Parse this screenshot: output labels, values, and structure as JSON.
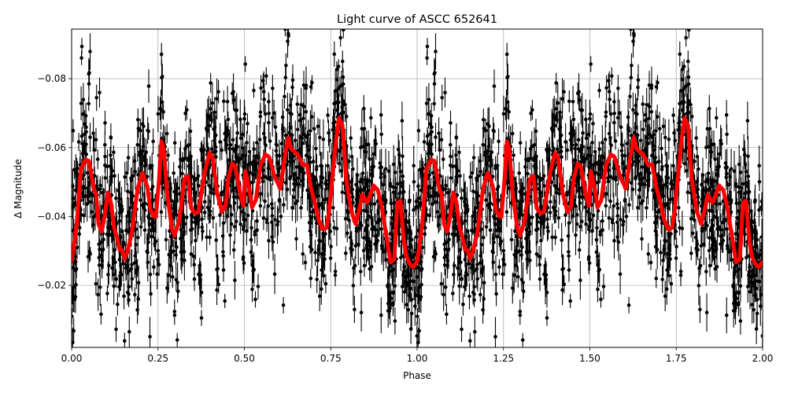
{
  "chart_data": {
    "type": "scatter",
    "title": "Light curve of ASCC 652641",
    "xlabel": "Phase",
    "ylabel": "Δ Magnitude",
    "xlim": [
      0.0,
      2.0
    ],
    "ylim": [
      -0.002,
      -0.0944
    ],
    "y_inverted": true,
    "grid": true,
    "legend": null,
    "xticks": [
      "0.00",
      "0.25",
      "0.50",
      "0.75",
      "1.00",
      "1.25",
      "1.50",
      "1.75",
      "2.00"
    ],
    "xtick_values": [
      0.0,
      0.25,
      0.5,
      0.75,
      1.0,
      1.25,
      1.5,
      1.75,
      2.0
    ],
    "yticks": [
      "−0.08",
      "−0.06",
      "−0.04",
      "−0.02"
    ],
    "ytick_values": [
      -0.08,
      -0.06,
      -0.04,
      -0.02
    ],
    "series": [
      {
        "name": "observations",
        "kind": "errorbar-scatter",
        "color": "#000000",
        "description": "Dense phase-folded photometry points with vertical error bars, scattered roughly between -0.094 and -0.002, repeated over two phase cycles",
        "approx_center": -0.045,
        "approx_spread": 0.045
      },
      {
        "name": "smoothed model",
        "kind": "line",
        "color": "#ff0000",
        "linewidth": 5,
        "periodic": true,
        "period": 1.0,
        "x": [
          0.0,
          0.014,
          0.027,
          0.041,
          0.05,
          0.064,
          0.071,
          0.078,
          0.087,
          0.096,
          0.105,
          0.114,
          0.123,
          0.13,
          0.139,
          0.146,
          0.153,
          0.162,
          0.175,
          0.191,
          0.205,
          0.219,
          0.228,
          0.237,
          0.244,
          0.253,
          0.26,
          0.267,
          0.276,
          0.29,
          0.298,
          0.312,
          0.326,
          0.337,
          0.346,
          0.358,
          0.367,
          0.385,
          0.399,
          0.408,
          0.421,
          0.435,
          0.446,
          0.453,
          0.465,
          0.474,
          0.487,
          0.497,
          0.503,
          0.515,
          0.522,
          0.533,
          0.547,
          0.561,
          0.572,
          0.588,
          0.604,
          0.617,
          0.627,
          0.636,
          0.654,
          0.663,
          0.668,
          0.681,
          0.692,
          0.704,
          0.715,
          0.727,
          0.738,
          0.745,
          0.756,
          0.765,
          0.774,
          0.784,
          0.795,
          0.809,
          0.822,
          0.836,
          0.841,
          0.855,
          0.863,
          0.874,
          0.886,
          0.897,
          0.909,
          0.923,
          0.934,
          0.943,
          0.952,
          0.961,
          0.968,
          0.979,
          0.989,
          1.0
        ],
        "y": [
          -0.0269,
          -0.0367,
          -0.0538,
          -0.0565,
          -0.0561,
          -0.0481,
          -0.0463,
          -0.0378,
          -0.0356,
          -0.0401,
          -0.047,
          -0.044,
          -0.0367,
          -0.0344,
          -0.0303,
          -0.0303,
          -0.0276,
          -0.0299,
          -0.0356,
          -0.0481,
          -0.0527,
          -0.0488,
          -0.042,
          -0.0401,
          -0.0399,
          -0.0508,
          -0.0618,
          -0.0595,
          -0.047,
          -0.0367,
          -0.0344,
          -0.039,
          -0.0508,
          -0.0518,
          -0.0424,
          -0.0408,
          -0.0413,
          -0.0527,
          -0.0584,
          -0.0572,
          -0.047,
          -0.0413,
          -0.0431,
          -0.0508,
          -0.0554,
          -0.0545,
          -0.047,
          -0.0431,
          -0.0531,
          -0.0477,
          -0.0426,
          -0.0447,
          -0.055,
          -0.058,
          -0.0572,
          -0.0515,
          -0.0481,
          -0.0572,
          -0.0629,
          -0.0595,
          -0.0581,
          -0.0561,
          -0.055,
          -0.055,
          -0.0486,
          -0.044,
          -0.039,
          -0.0363,
          -0.0367,
          -0.0413,
          -0.0527,
          -0.0618,
          -0.0686,
          -0.0664,
          -0.0508,
          -0.0417,
          -0.0378,
          -0.0435,
          -0.0463,
          -0.044,
          -0.0458,
          -0.049,
          -0.0477,
          -0.0431,
          -0.0356,
          -0.0267,
          -0.0276,
          -0.044,
          -0.0445,
          -0.0335,
          -0.0287,
          -0.0262,
          -0.0253,
          -0.0269
        ]
      }
    ]
  }
}
